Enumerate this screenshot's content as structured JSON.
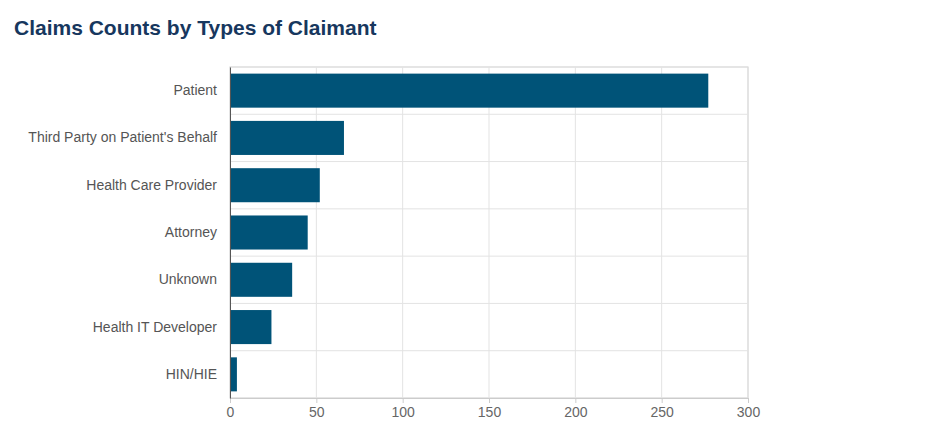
{
  "chart_data": {
    "type": "bar",
    "title": "Claims Counts by Types of Claimant",
    "categories": [
      "Patient",
      "Third Party on Patient's Behalf",
      "Health Care Provider",
      "Attorney",
      "Unknown",
      "Health IT Developer",
      "HIN/HIE"
    ],
    "values": [
      277,
      66,
      52,
      45,
      36,
      24,
      4
    ],
    "color": "#005378",
    "orientation": "horizontal",
    "xlim": [
      0,
      300
    ],
    "xticks": [
      0,
      50,
      100,
      150,
      200,
      250,
      300
    ],
    "grid": true
  }
}
